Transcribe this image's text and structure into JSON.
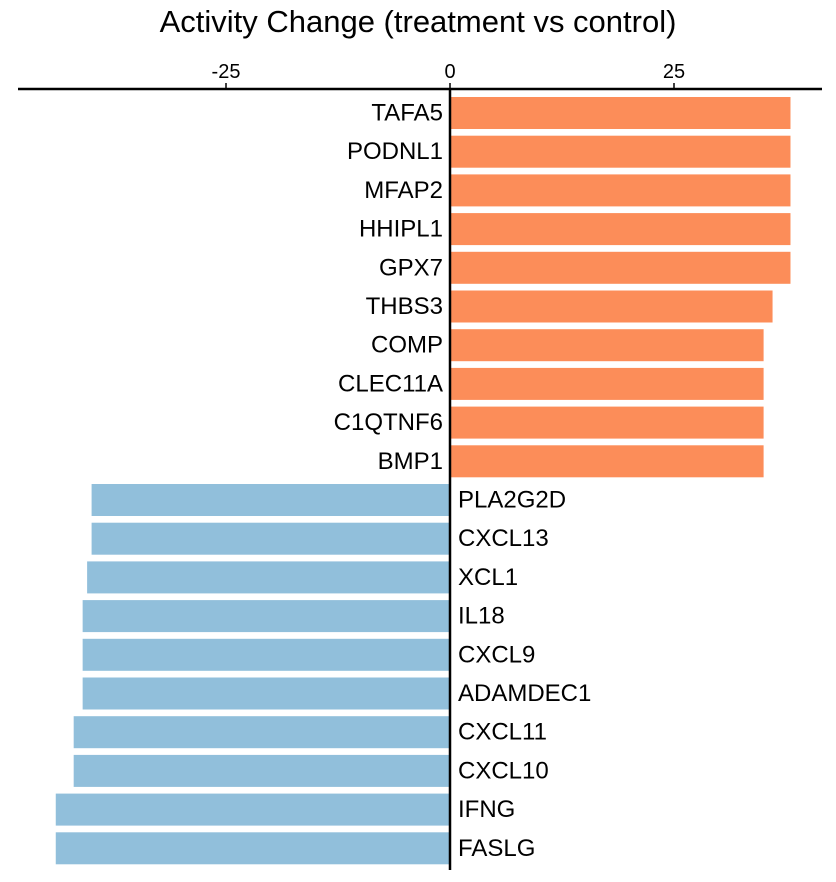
{
  "chart_data": {
    "type": "bar",
    "orientation": "horizontal",
    "title": "Activity Change (treatment vs control)",
    "xlabel": "",
    "ylabel": "",
    "x_axis_position": "top",
    "x_ticks": [
      -25,
      0,
      25
    ],
    "x_tick_labels": [
      "-25",
      "0",
      "25"
    ],
    "xlim": [
      -48.5,
      41.5
    ],
    "grid": false,
    "legend": "none",
    "colors": {
      "positive": "#FC8D59",
      "negative": "#91BFDB"
    },
    "categories": [
      "TAFA5",
      "PODNL1",
      "MFAP2",
      "HHIPL1",
      "GPX7",
      "THBS3",
      "COMP",
      "CLEC11A",
      "C1QTNF6",
      "BMP1",
      "PLA2G2D",
      "CXCL13",
      "XCL1",
      "IL18",
      "CXCL9",
      "ADAMDEC1",
      "CXCL11",
      "CXCL10",
      "IFNG",
      "FASLG"
    ],
    "values": [
      38,
      38,
      38,
      38,
      38,
      36,
      35,
      35,
      35,
      35,
      -40,
      -40,
      -40.5,
      -41,
      -41,
      -41,
      -42,
      -42,
      -44,
      -44
    ]
  }
}
